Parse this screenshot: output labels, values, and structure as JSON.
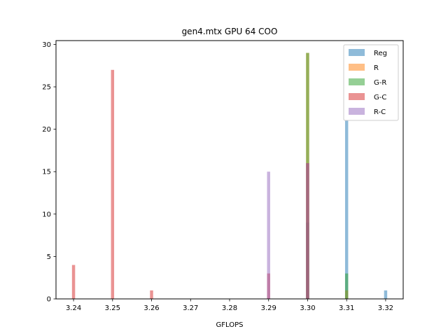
{
  "chart_data": {
    "type": "bar",
    "title": "gen4.mtx GPU 64 COO",
    "xlabel": "GFLOPS",
    "ylabel": "",
    "xlim": [
      3.2355,
      3.3245
    ],
    "ylim": [
      0,
      30.45
    ],
    "xticks": [
      3.24,
      3.25,
      3.26,
      3.27,
      3.28,
      3.29,
      3.3,
      3.31,
      3.32
    ],
    "xtick_labels": [
      "3.24",
      "3.25",
      "3.26",
      "3.27",
      "3.28",
      "3.29",
      "3.30",
      "3.31",
      "3.32"
    ],
    "yticks": [
      0,
      5,
      10,
      15,
      20,
      25,
      30
    ],
    "ytick_labels": [
      "0",
      "5",
      "10",
      "15",
      "20",
      "25",
      "30"
    ],
    "grid": false,
    "legend_position": "top-right",
    "bin_width": 0.0008,
    "series": [
      {
        "name": "Reg",
        "color": "#1f77b4",
        "opacity": 0.5,
        "points": [
          {
            "x": 3.3,
            "y": 9
          },
          {
            "x": 3.31,
            "y": 21
          },
          {
            "x": 3.32,
            "y": 1
          }
        ]
      },
      {
        "name": "R",
        "color": "#ff7f0e",
        "opacity": 0.5,
        "points": [
          {
            "x": 3.3,
            "y": 29
          },
          {
            "x": 3.31,
            "y": 1
          }
        ]
      },
      {
        "name": "G-R",
        "color": "#2ca02c",
        "opacity": 0.5,
        "points": [
          {
            "x": 3.3,
            "y": 29
          },
          {
            "x": 3.31,
            "y": 3
          }
        ]
      },
      {
        "name": "G-C",
        "color": "#d62728",
        "opacity": 0.5,
        "points": [
          {
            "x": 3.24,
            "y": 4
          },
          {
            "x": 3.25,
            "y": 27
          },
          {
            "x": 3.26,
            "y": 1
          },
          {
            "x": 3.29,
            "y": 3
          },
          {
            "x": 3.3,
            "y": 16
          }
        ]
      },
      {
        "name": "R-C",
        "color": "#9467bd",
        "opacity": 0.5,
        "points": [
          {
            "x": 3.29,
            "y": 15
          },
          {
            "x": 3.3,
            "y": 16
          }
        ]
      }
    ]
  }
}
